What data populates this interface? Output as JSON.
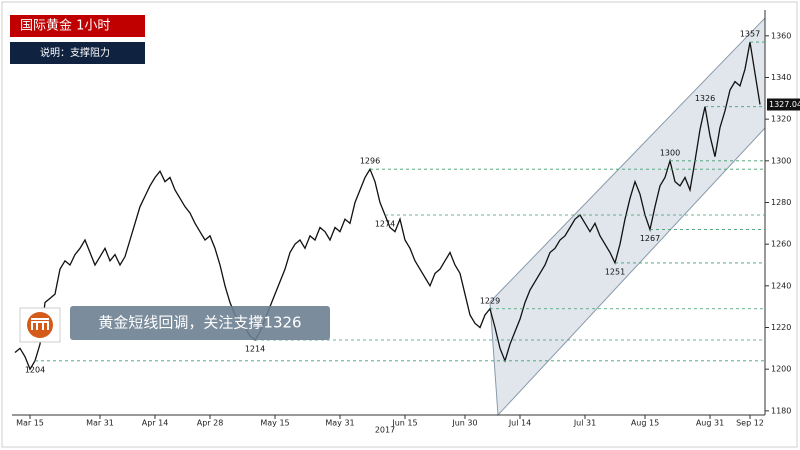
{
  "chart_data": {
    "type": "line",
    "title": "国际黄金  1小时",
    "subtitle": "说明：支撑阻力",
    "annotation": "黄金短线回调，关注支撑1326",
    "x_year_label": "2017",
    "color": "#111111",
    "support_color": "#3f9f6f",
    "grid": false,
    "ylim": [
      1178,
      1370
    ],
    "yticks": [
      1180,
      1200,
      1220,
      1240,
      1260,
      1280,
      1300,
      1320,
      1340,
      1360
    ],
    "price_labels": [
      1357,
      1326,
      1300,
      1296,
      1274,
      1267,
      1251,
      1229,
      1214,
      1204
    ],
    "categories": [
      null,
      null,
      null,
      "Mar 15",
      null,
      null,
      null,
      null,
      null,
      null,
      null,
      null,
      null,
      null,
      null,
      null,
      null,
      "Mar 31",
      null,
      null,
      null,
      null,
      null,
      null,
      null,
      null,
      null,
      null,
      "Apr 14",
      null,
      null,
      null,
      null,
      null,
      null,
      null,
      null,
      null,
      null,
      "Apr 28",
      null,
      null,
      null,
      null,
      null,
      null,
      null,
      null,
      null,
      null,
      null,
      null,
      "May 15",
      null,
      null,
      null,
      null,
      null,
      null,
      null,
      null,
      null,
      null,
      null,
      null,
      "May 31",
      null,
      null,
      null,
      null,
      null,
      null,
      null,
      null,
      null,
      null,
      null,
      null,
      "Jun 15",
      null,
      null,
      null,
      null,
      null,
      null,
      null,
      null,
      null,
      null,
      null,
      "Jun 30",
      null,
      null,
      null,
      null,
      null,
      null,
      null,
      null,
      null,
      null,
      "Jul 14",
      null,
      null,
      null,
      null,
      null,
      null,
      null,
      null,
      null,
      null,
      null,
      null,
      "Jul 31",
      null,
      null,
      null,
      null,
      null,
      null,
      null,
      null,
      null,
      null,
      null,
      "Aug 15",
      null,
      null,
      null,
      null,
      null,
      null,
      null,
      null,
      null,
      null,
      null,
      null,
      "Aug 31",
      null,
      null,
      null,
      null,
      null,
      null,
      null,
      "Sep 12",
      null,
      null
    ],
    "values": [
      1208,
      1210,
      1206,
      1200,
      1204,
      1212,
      1232,
      1234,
      1236,
      1248,
      1252,
      1250,
      1255,
      1258,
      1262,
      1256,
      1250,
      1254,
      1258,
      1252,
      1255,
      1250,
      1254,
      1262,
      1270,
      1278,
      1283,
      1288,
      1292,
      1295,
      1290,
      1292,
      1286,
      1282,
      1278,
      1275,
      1270,
      1266,
      1262,
      1264,
      1258,
      1250,
      1240,
      1232,
      1226,
      1222,
      1220,
      1216,
      1214,
      1218,
      1224,
      1230,
      1236,
      1242,
      1248,
      1256,
      1260,
      1262,
      1258,
      1264,
      1262,
      1268,
      1266,
      1262,
      1268,
      1266,
      1272,
      1270,
      1280,
      1286,
      1292,
      1296,
      1290,
      1280,
      1274,
      1268,
      1266,
      1272,
      1262,
      1258,
      1252,
      1248,
      1244,
      1240,
      1246,
      1248,
      1252,
      1256,
      1250,
      1246,
      1236,
      1226,
      1222,
      1220,
      1226,
      1229,
      1220,
      1210,
      1204,
      1212,
      1218,
      1224,
      1232,
      1238,
      1242,
      1246,
      1250,
      1256,
      1258,
      1262,
      1264,
      1268,
      1272,
      1274,
      1270,
      1266,
      1270,
      1264,
      1260,
      1256,
      1251,
      1260,
      1272,
      1282,
      1290,
      1284,
      1274,
      1267,
      1278,
      1288,
      1292,
      1300,
      1290,
      1288,
      1292,
      1286,
      1300,
      1315,
      1326,
      1312,
      1302,
      1316,
      1324,
      1334,
      1338,
      1336,
      1344,
      1357,
      1342,
      1327.04
    ]
  }
}
